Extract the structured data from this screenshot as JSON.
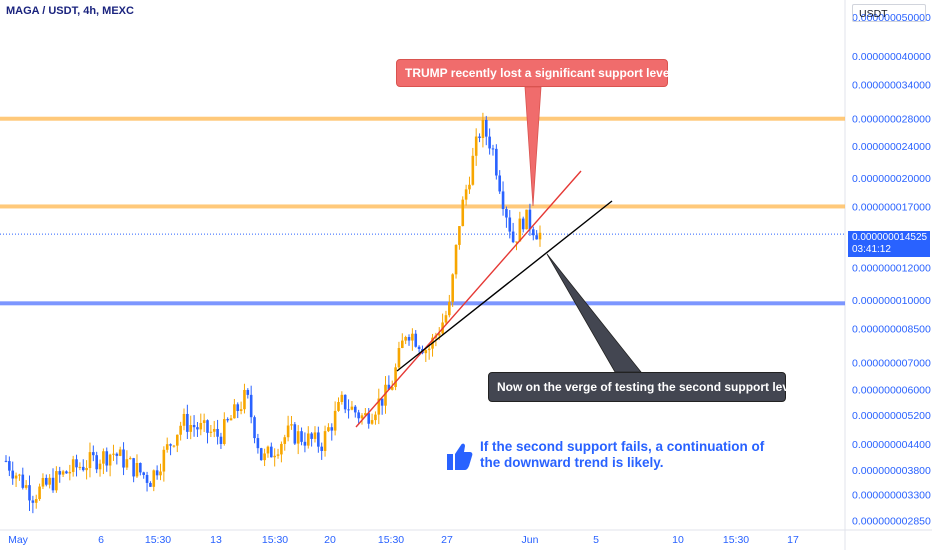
{
  "header": {
    "symbol_line": "MAGA / USDT, 4h, MEXC",
    "currency": "USDT"
  },
  "colors": {
    "up": "#f7a600",
    "down": "#2962ff",
    "resistance": "#ffb74d",
    "support": "#5b7cff",
    "trend_red": "#e53935",
    "trend_black": "#000000",
    "callout_red": "#f06c6c",
    "callout_dark": "#434651",
    "note_blue": "#2962ff",
    "price_tag": "#2962ff"
  },
  "last_price": {
    "value": "0.000000014525",
    "countdown": "03:41:12"
  },
  "annotations": {
    "callout_top": "TRUMP recently lost a significant support level.",
    "callout_bottom": "Now on the verge of testing the second support level",
    "note_line1": "If the second support fails, a continuation of",
    "note_line2": "the downward trend is likely.",
    "note_icon": "thumbs-up-icon"
  },
  "chart_data": {
    "type": "candlestick",
    "title": "MAGA / USDT, 4h, MEXC",
    "y_scale": "log",
    "ylim": [
      2.7e-09,
      5.5e-08
    ],
    "y_ticks": [
      "0.000000050000",
      "0.000000040000",
      "0.000000034000",
      "0.000000028000",
      "0.000000024000",
      "0.000000020000",
      "0.000000017000",
      "0.000000012000",
      "0.000000010000",
      "0.000000008500",
      "0.000000007000",
      "0.000000006000",
      "0.000000005200",
      "0.000000004400",
      "0.000000003800",
      "0.000000003300",
      "0.000000002850"
    ],
    "x_ticks": [
      "May",
      "6",
      "15:30",
      "13",
      "15:30",
      "20",
      "15:30",
      "27",
      "Jun",
      "5",
      "10",
      "15:30",
      "17"
    ],
    "horizontal_levels": [
      {
        "price": 2.8e-08,
        "role": "resistance"
      },
      {
        "price": 1.7e-08,
        "role": "resistance"
      },
      {
        "price": 9.8e-09,
        "role": "support"
      }
    ],
    "trendlines": [
      {
        "role": "red",
        "from": {
          "x": "20",
          "y": 4.5e-09
        },
        "to": {
          "x": "5",
          "y": 2.2e-08
        }
      },
      {
        "role": "black",
        "from": {
          "x": "20",
          "y": 6.8e-09
        },
        "to": {
          "x": "5",
          "y": 1.8e-08
        }
      }
    ],
    "last_price": 1.4525e-08,
    "anchors": [
      {
        "t": 0,
        "p": 4e-09
      },
      {
        "t": 0.05,
        "p": 3.3e-09
      },
      {
        "t": 0.12,
        "p": 3.8e-09
      },
      {
        "t": 0.2,
        "p": 4.2e-09
      },
      {
        "t": 0.27,
        "p": 3.6e-09
      },
      {
        "t": 0.33,
        "p": 5e-09
      },
      {
        "t": 0.4,
        "p": 4.6e-09
      },
      {
        "t": 0.45,
        "p": 5.8e-09
      },
      {
        "t": 0.48,
        "p": 4e-09
      },
      {
        "t": 0.53,
        "p": 4.7e-09
      },
      {
        "t": 0.59,
        "p": 4.4e-09
      },
      {
        "t": 0.63,
        "p": 5.6e-09
      },
      {
        "t": 0.67,
        "p": 5.1e-09
      },
      {
        "t": 0.72,
        "p": 6e-09
      },
      {
        "t": 0.75,
        "p": 8.5e-09
      },
      {
        "t": 0.79,
        "p": 7.5e-09
      },
      {
        "t": 0.83,
        "p": 9.5e-09
      },
      {
        "t": 0.85,
        "p": 1.6e-08
      },
      {
        "t": 0.87,
        "p": 2.1e-08
      },
      {
        "t": 0.89,
        "p": 2.7e-08
      },
      {
        "t": 0.91,
        "p": 2.4e-08
      },
      {
        "t": 0.93,
        "p": 1.8e-08
      },
      {
        "t": 0.95,
        "p": 1.4e-08
      },
      {
        "t": 0.97,
        "p": 1.6e-08
      },
      {
        "t": 1.0,
        "p": 1.4525e-08
      }
    ]
  }
}
